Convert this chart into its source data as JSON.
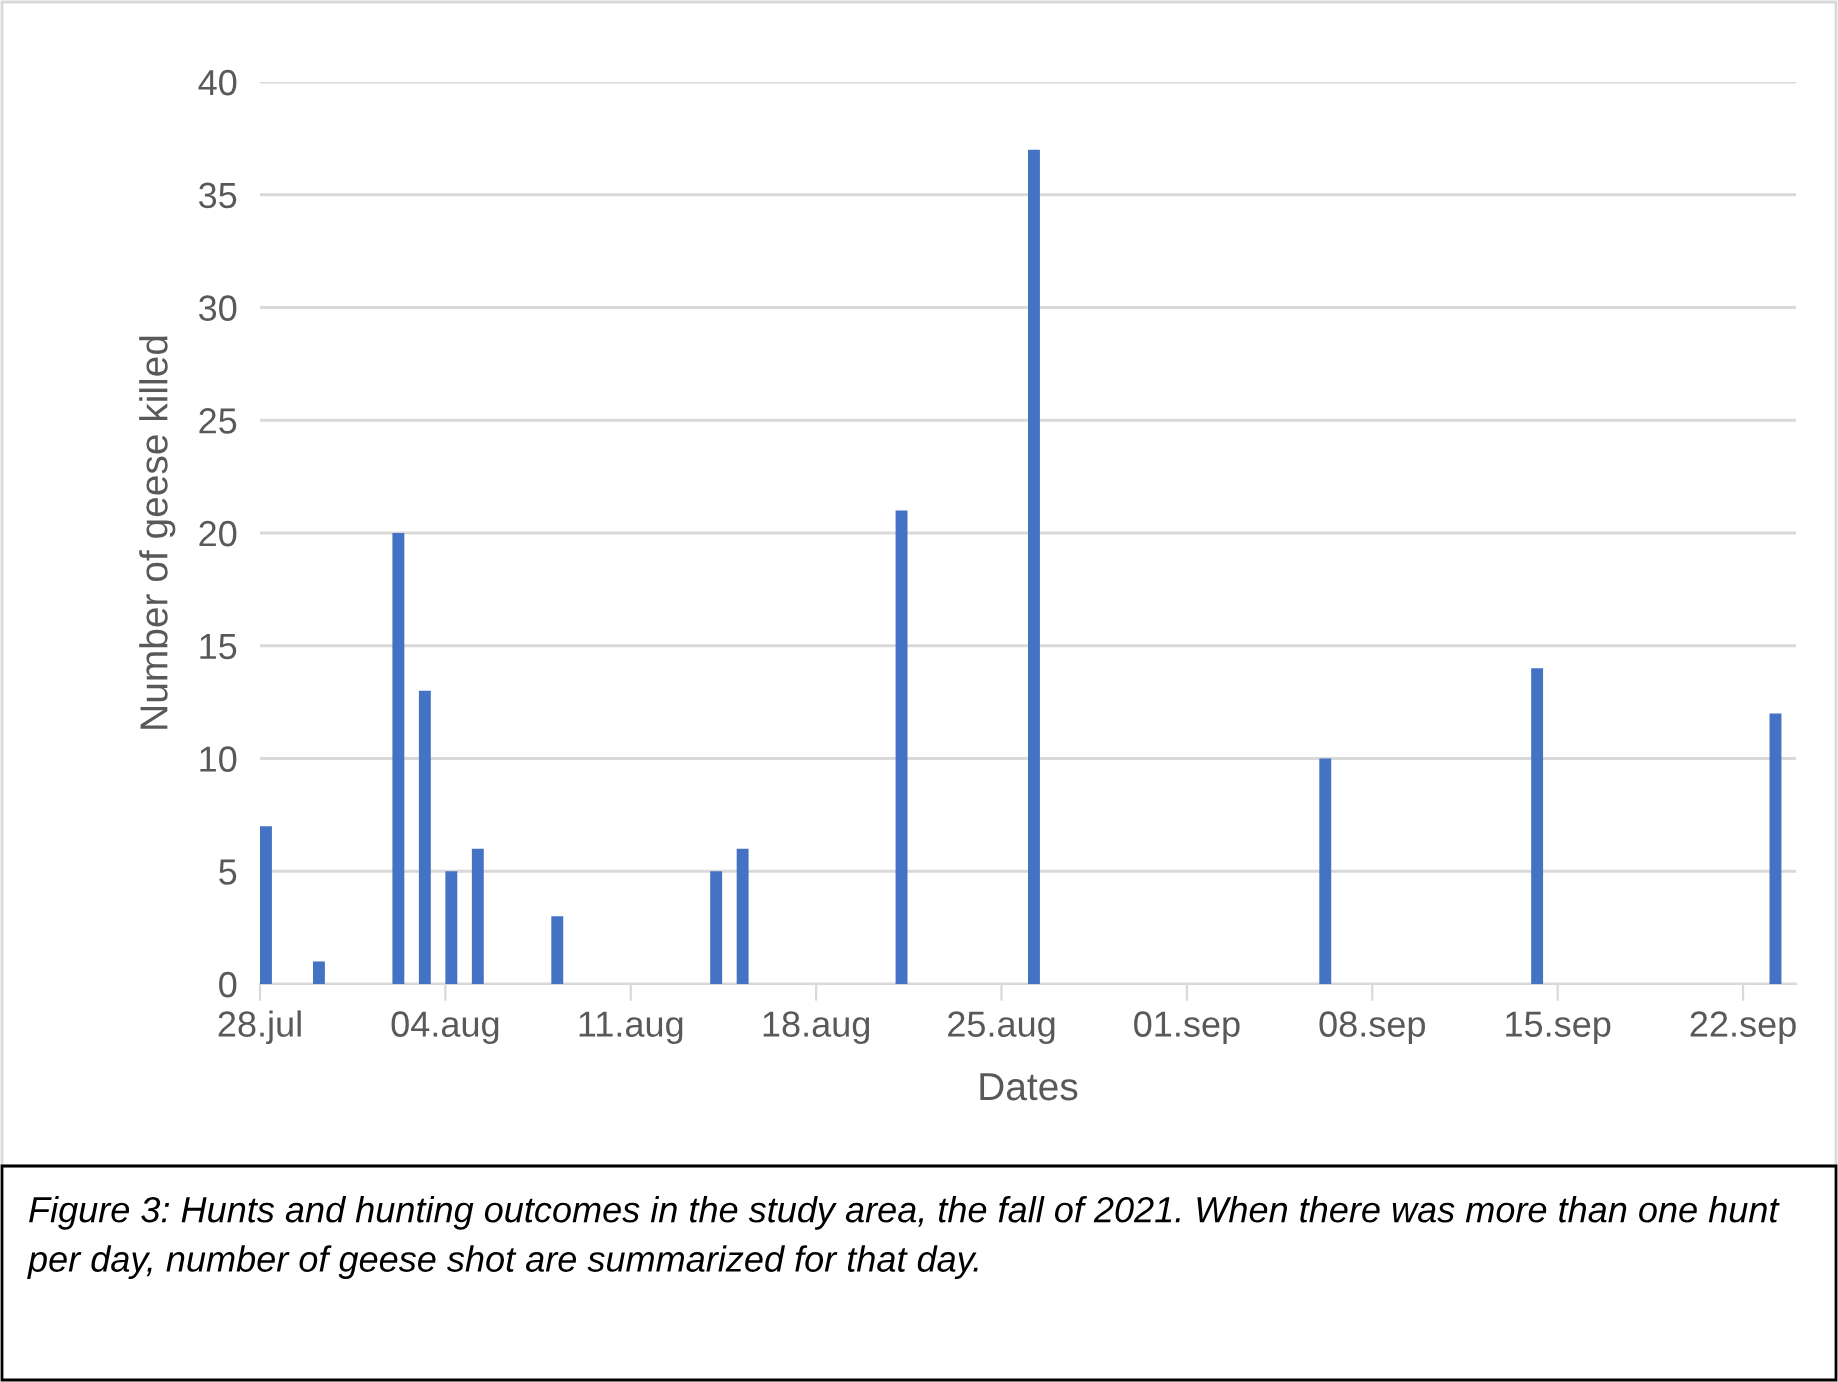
{
  "chart_data": {
    "type": "bar",
    "xlabel": "Dates",
    "ylabel": "Number of geese killed",
    "x": [
      "2021-07-28",
      "2021-07-30",
      "2021-08-02",
      "2021-08-03",
      "2021-08-04",
      "2021-08-05",
      "2021-08-08",
      "2021-08-14",
      "2021-08-15",
      "2021-08-21",
      "2021-08-26",
      "2021-09-06",
      "2021-09-14",
      "2021-09-23"
    ],
    "values": [
      7,
      1,
      20,
      13,
      5,
      6,
      3,
      5,
      6,
      21,
      37,
      10,
      14,
      12
    ],
    "color": "#4472c4",
    "xlim": [
      "2021-07-28",
      "2021-09-24"
    ],
    "xticks": [
      {
        "value": "2021-07-28",
        "label": "28.jul"
      },
      {
        "value": "2021-08-04",
        "label": "04.aug"
      },
      {
        "value": "2021-08-11",
        "label": "11.aug"
      },
      {
        "value": "2021-08-18",
        "label": "18.aug"
      },
      {
        "value": "2021-08-25",
        "label": "25.aug"
      },
      {
        "value": "2021-09-01",
        "label": "01.sep"
      },
      {
        "value": "2021-09-08",
        "label": "08.sep"
      },
      {
        "value": "2021-09-15",
        "label": "15.sep"
      },
      {
        "value": "2021-09-22",
        "label": "22.sep"
      }
    ],
    "ylim": [
      0,
      40
    ],
    "yticks": [
      0,
      5,
      10,
      15,
      20,
      25,
      30,
      35,
      40
    ],
    "grid": "y",
    "annotations": [
      "Figure 3: Hunts and hunting outcomes in the study area, the fall of 2021. When there was more than one hunt per day, number of geese shot are summarized for that day."
    ]
  }
}
